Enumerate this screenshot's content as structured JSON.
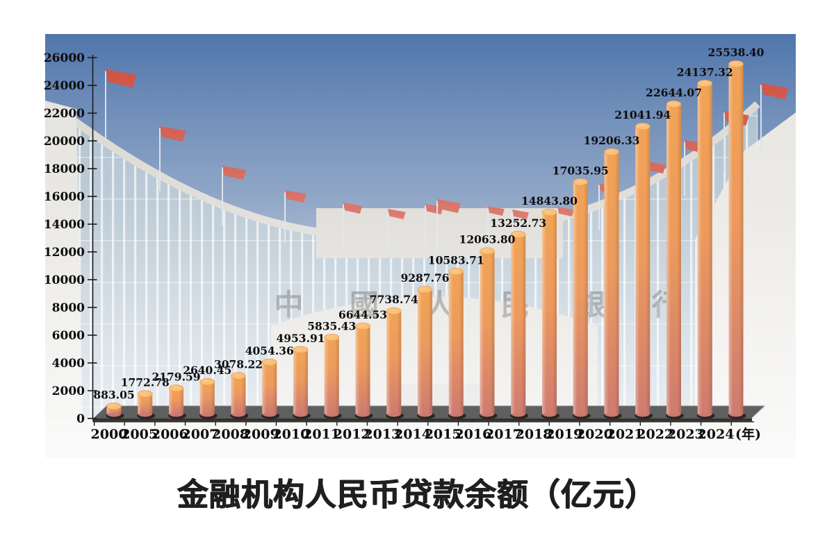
{
  "page": {
    "caption": "金融机构人民币贷款余额（亿元）"
  },
  "chart_data": {
    "type": "bar",
    "bar_style": "3d-cylinder",
    "title": "金融机构人民币贷款余额（亿元）",
    "xlabel": "(年)",
    "ylabel": "",
    "ylim": [
      0,
      26000
    ],
    "ytick_step": 2000,
    "yticks": [
      0,
      2000,
      4000,
      6000,
      8000,
      10000,
      12000,
      14000,
      16000,
      18000,
      20000,
      22000,
      24000,
      26000
    ],
    "grid": false,
    "legend": null,
    "categories": [
      "2000",
      "2005",
      "2006",
      "2007",
      "2008",
      "2009",
      "2010",
      "2011",
      "2012",
      "2013",
      "2014",
      "2015",
      "2016",
      "2017",
      "2018",
      "2019",
      "2020",
      "2021",
      "2022",
      "2023",
      "2024"
    ],
    "values": [
      883.05,
      1772.78,
      2179.59,
      2640.45,
      3078.22,
      4054.36,
      4953.91,
      5835.43,
      6644.53,
      7738.74,
      9287.76,
      10583.71,
      12063.8,
      13252.73,
      14843.8,
      17035.95,
      19206.33,
      21041.94,
      22644.07,
      24137.32,
      25538.4
    ],
    "value_labels": [
      "883.05",
      "1772.78",
      "2179.59",
      "2640.45",
      "3078.22",
      "4054.36",
      "4953.91",
      "5835.43",
      "6644.53",
      "7738.74",
      "9287.76",
      "10583.71",
      "12063.80",
      "13252.73",
      "14843.80",
      "17035.95",
      "19206.33",
      "21041.94",
      "22644.07",
      "24137.32",
      "25538.40"
    ]
  },
  "background_photo": {
    "building_sign_text": "中 國 人 民 銀 行",
    "flag_color": "#cf4a3c",
    "sky_top_color": "#5076ac",
    "sky_bottom_color": "#aabbd0"
  },
  "colors": {
    "bar_top_ellipse": "#f8b768",
    "bar_body_top": "#f2a355",
    "bar_body_bottom": "#cf7b70",
    "platform": "#5f5f5f",
    "axis": "#1c1c1c",
    "label_text": "#0d0d0d",
    "title_text": "#1f1f1f"
  }
}
